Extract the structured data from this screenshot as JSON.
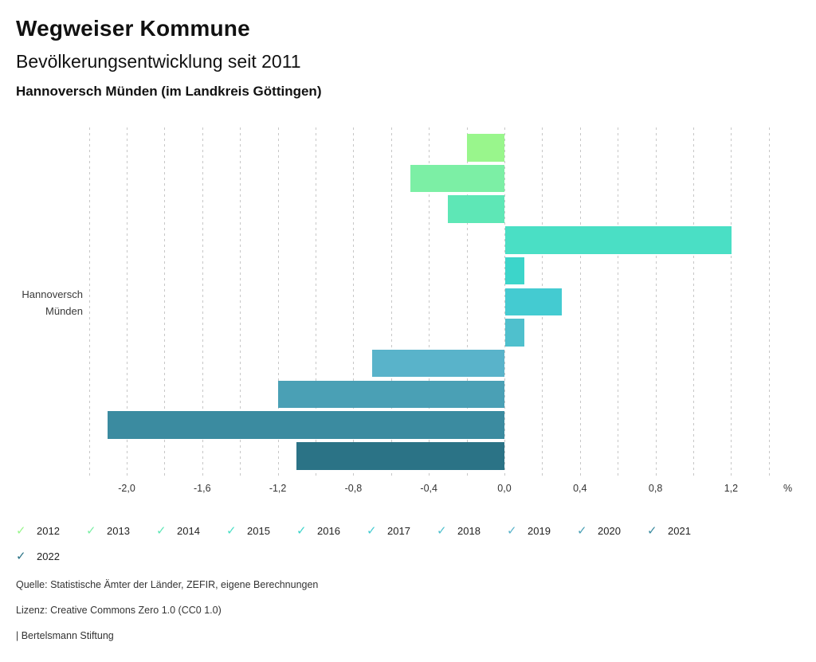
{
  "header": {
    "title": "Wegweiser Kommune",
    "subtitle": "Bevölkerungsentwicklung seit 2011",
    "region": "Hannoversch Münden (im Landkreis Göttingen)"
  },
  "chart_data": {
    "type": "bar",
    "orientation": "horizontal",
    "title": "Bevölkerungsentwicklung seit 2011",
    "category": "Hannoversch Münden",
    "category_label_lines": [
      "Hannoversch",
      "Münden"
    ],
    "unit": "%",
    "xlim": [
      -2.2,
      1.4
    ],
    "grid_step": 0.2,
    "grid": true,
    "series": [
      {
        "name": "2012",
        "value": -0.2,
        "color": "#99f68c"
      },
      {
        "name": "2013",
        "value": -0.5,
        "color": "#7cefa5"
      },
      {
        "name": "2014",
        "value": -0.3,
        "color": "#5ee7b6"
      },
      {
        "name": "2015",
        "value": 1.2,
        "color": "#4adfc5"
      },
      {
        "name": "2016",
        "value": 0.1,
        "color": "#3cd5ca"
      },
      {
        "name": "2017",
        "value": 0.3,
        "color": "#44cbd1"
      },
      {
        "name": "2018",
        "value": 0.1,
        "color": "#4fc0cd"
      },
      {
        "name": "2019",
        "value": -0.7,
        "color": "#59b3ca"
      },
      {
        "name": "2020",
        "value": -1.2,
        "color": "#4aa0b5"
      },
      {
        "name": "2021",
        "value": -2.1,
        "color": "#3b8ba0"
      },
      {
        "name": "2022",
        "value": -1.1,
        "color": "#2b7386"
      }
    ],
    "x_ticks": [
      {
        "value": -2.0,
        "label": "-2,0"
      },
      {
        "value": -1.6,
        "label": "-1,6"
      },
      {
        "value": -1.2,
        "label": "-1,2"
      },
      {
        "value": -0.8,
        "label": "-0,8"
      },
      {
        "value": -0.4,
        "label": "-0,4"
      },
      {
        "value": 0.0,
        "label": "0,0"
      },
      {
        "value": 0.4,
        "label": "0,4"
      },
      {
        "value": 0.8,
        "label": "0,8"
      },
      {
        "value": 1.2,
        "label": "1,2"
      }
    ],
    "legend_position": "bottom"
  },
  "legend": {
    "check_icon": "✓",
    "items": [
      {
        "label": "2012",
        "color": "#99f68c"
      },
      {
        "label": "2013",
        "color": "#7cefa5"
      },
      {
        "label": "2014",
        "color": "#5ee7b6"
      },
      {
        "label": "2015",
        "color": "#4adfc5"
      },
      {
        "label": "2016",
        "color": "#3cd5ca"
      },
      {
        "label": "2017",
        "color": "#44cbd1"
      },
      {
        "label": "2018",
        "color": "#4fc0cd"
      },
      {
        "label": "2019",
        "color": "#59b3ca"
      },
      {
        "label": "2020",
        "color": "#4aa0b5"
      },
      {
        "label": "2021",
        "color": "#3b8ba0"
      },
      {
        "label": "2022",
        "color": "#2b7386"
      }
    ]
  },
  "footer": {
    "source": "Quelle: Statistische Ämter der Länder, ZEFIR, eigene Berechnungen",
    "license": "Lizenz: Creative Commons Zero 1.0 (CC0 1.0)",
    "attribution": "| Bertelsmann Stiftung"
  }
}
